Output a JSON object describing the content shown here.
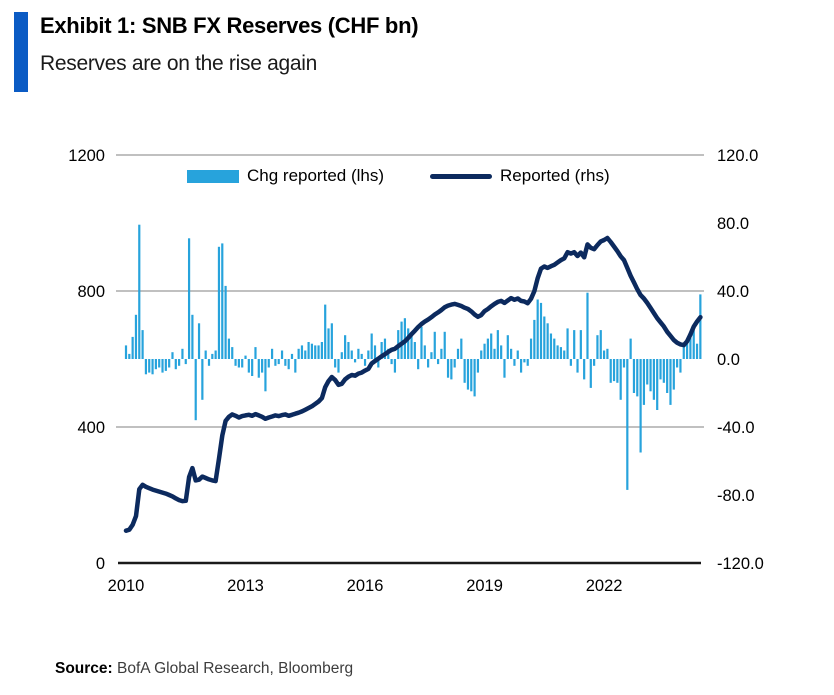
{
  "header": {
    "exhibit_title": "Exhibit 1: SNB FX Reserves (CHF bn)",
    "subtitle": "Reserves are on the rise again"
  },
  "source": {
    "label": "Source:",
    "text": " BofA Global Research, Bloomberg"
  },
  "colors": {
    "accent_bar": "#0b5bc4",
    "chg_bar": "#27a3dc",
    "reported_line": "#0c2a5e",
    "gridline": "#c0c0c0",
    "axis_line": "#1a1a1a"
  },
  "legend": {
    "items": [
      {
        "label": "Chg reported (lhs)",
        "type": "bar",
        "color": "#27a3dc"
      },
      {
        "label": "Reported (rhs)",
        "type": "line",
        "color": "#0c2a5e"
      }
    ]
  },
  "chart_data": {
    "type": "bar+line combo",
    "title": "SNB FX Reserves (CHF bn)",
    "x_unit": "month",
    "x_start": "2010-01",
    "x_end": "2024-06",
    "x_tick_labels": [
      "2010",
      "2013",
      "2016",
      "2019",
      "2022"
    ],
    "grid": "horizontal-only",
    "legend_position": "top-center-inside",
    "left_axis": {
      "min": 0,
      "max": 1200,
      "ticks": [
        "1200",
        "800",
        "400",
        "0"
      ]
    },
    "right_axis": {
      "min": -120,
      "max": 120,
      "ticks": [
        "120.0",
        "80.0",
        "40.0",
        "0.0",
        "-40.0",
        "-80.0",
        "-120.0"
      ]
    },
    "series": [
      {
        "name": "Chg reported (lhs)",
        "type": "bar",
        "axis": "right",
        "values": [
          8,
          3,
          13,
          26,
          79,
          17,
          -9,
          -8,
          -9,
          -6,
          -5,
          -8,
          -7,
          -5,
          4,
          -6,
          -4,
          6,
          -3,
          71,
          26,
          -36,
          21,
          -24,
          5,
          -4,
          3,
          5,
          66,
          68,
          43,
          12,
          7,
          -4,
          -5,
          -5,
          2,
          -8,
          -10,
          7,
          -11,
          -8,
          -19,
          -5,
          6,
          -4,
          -3,
          5,
          -4,
          -6,
          3,
          -8,
          6,
          8,
          5,
          10,
          9,
          8,
          8,
          10,
          32,
          18,
          21,
          -5,
          -8,
          4,
          14,
          10,
          5,
          -2,
          6,
          3,
          -4,
          5,
          15,
          8,
          -5,
          10,
          12,
          6,
          -3,
          -8,
          17,
          22,
          24,
          18,
          15,
          10,
          -6,
          19,
          8,
          -5,
          4,
          16,
          -3,
          6,
          16,
          -11,
          -12,
          -5,
          6,
          12,
          -14,
          -18,
          -19,
          -22,
          -8,
          5,
          9,
          12,
          15,
          6,
          17,
          8,
          -11,
          14,
          6,
          -4,
          5,
          -8,
          -2,
          -4,
          12,
          23,
          35,
          33,
          25,
          21,
          15,
          12,
          8,
          7,
          5,
          18,
          -4,
          17,
          -8,
          17,
          -12,
          39,
          -17,
          -4,
          14,
          17,
          5,
          6,
          -14,
          -13,
          -14,
          -24,
          -5,
          -77,
          12,
          -20,
          -22,
          -55,
          -27,
          -15,
          -19,
          -24,
          -30,
          -12,
          -14,
          -20,
          -27,
          -18,
          -5,
          -8,
          8,
          11,
          14,
          17,
          9,
          38
        ]
      },
      {
        "name": "Reported (rhs)",
        "type": "line",
        "axis": "left",
        "values": [
          95,
          98,
          112,
          138,
          217,
          230,
          224,
          220,
          216,
          213,
          210,
          207,
          204,
          200,
          196,
          190,
          185,
          182,
          183,
          253,
          279,
          243,
          245,
          254,
          250,
          246,
          243,
          241,
          307,
          375,
          418,
          430,
          437,
          433,
          428,
          432,
          434,
          436,
          433,
          438,
          434,
          430,
          424,
          428,
          431,
          434,
          432,
          435,
          437,
          433,
          436,
          439,
          442,
          446,
          451,
          456,
          461,
          468,
          475,
          485,
          517,
          535,
          547,
          538,
          524,
          527,
          540,
          548,
          553,
          551,
          557,
          560,
          566,
          571,
          587,
          594,
          601,
          608,
          614,
          621,
          627,
          630,
          638,
          645,
          652,
          662,
          673,
          683,
          694,
          703,
          710,
          716,
          723,
          731,
          737,
          744,
          752,
          757,
          760,
          762,
          759,
          756,
          751,
          747,
          740,
          731,
          724,
          729,
          741,
          747,
          755,
          762,
          768,
          771,
          765,
          772,
          779,
          774,
          778,
          771,
          769,
          764,
          777,
          800,
          838,
          866,
          872,
          868,
          873,
          877,
          884,
          891,
          896,
          914,
          910,
          914,
          903,
          913,
          899,
          937,
          927,
          923,
          935,
          946,
          950,
          956,
          944,
          931,
          917,
          902,
          891,
          868,
          845,
          825,
          805,
          788,
          778,
          765,
          750,
          735,
          720,
          708,
          696,
          680,
          668,
          656,
          648,
          643,
          641,
          652,
          672,
          695,
          710,
          723
        ]
      }
    ]
  }
}
